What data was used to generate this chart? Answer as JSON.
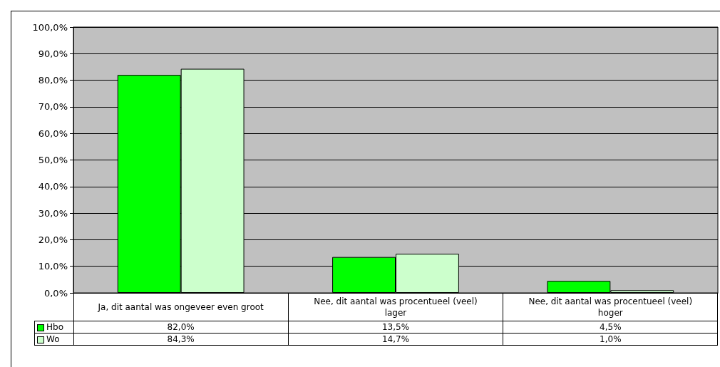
{
  "chart_data": {
    "type": "bar",
    "categories": [
      "Ja, dit aantal was ongeveer even groot",
      "Nee, dit aantal was procentueel (veel) lager",
      "Nee, dit aantal was procentueel (veel) hoger"
    ],
    "series": [
      {
        "name": "Hbo",
        "color": "#00ff00",
        "values": [
          82.0,
          13.5,
          4.5
        ],
        "value_labels": [
          "82,0%",
          "13,5%",
          "4,5%"
        ]
      },
      {
        "name": "Wo",
        "color": "#ccffcc",
        "values": [
          84.3,
          14.7,
          1.0
        ],
        "value_labels": [
          "84,3%",
          "14,7%",
          "1,0%"
        ]
      }
    ],
    "ylim": [
      0,
      100
    ],
    "yticks": [
      {
        "value": 0,
        "label": "0,0%"
      },
      {
        "value": 10,
        "label": "10,0%"
      },
      {
        "value": 20,
        "label": "20,0%"
      },
      {
        "value": 30,
        "label": "30,0%"
      },
      {
        "value": 40,
        "label": "40,0%"
      },
      {
        "value": 50,
        "label": "50,0%"
      },
      {
        "value": 60,
        "label": "60,0%"
      },
      {
        "value": 70,
        "label": "70,0%"
      },
      {
        "value": 80,
        "label": "80,0%"
      },
      {
        "value": 90,
        "label": "90,0%"
      },
      {
        "value": 100,
        "label": "100,0%"
      }
    ],
    "grid": "y",
    "legend": "bottom"
  }
}
